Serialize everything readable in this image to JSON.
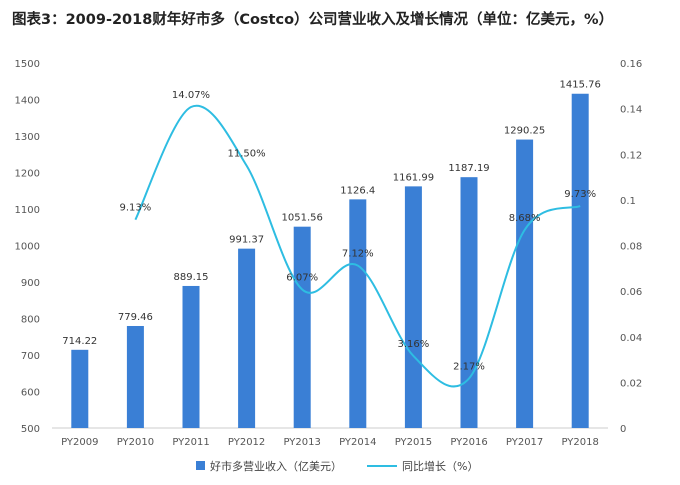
{
  "chart_data": {
    "type": "bar",
    "title": "图表3：2009-2018财年好市多（Costco）公司营业收入及增长情况（单位：亿美元，%）",
    "categories": [
      "PY2009",
      "PY2010",
      "PY2011",
      "PY2012",
      "PY2013",
      "PY2014",
      "PY2015",
      "PY2016",
      "PY2017",
      "PY2018"
    ],
    "series": [
      {
        "name": "好市多营业收入（亿美元）",
        "type": "bar",
        "axis": "left",
        "color": "#3a7fd5",
        "values": [
          714.22,
          779.46,
          889.15,
          991.37,
          1051.56,
          1126.4,
          1161.99,
          1187.19,
          1290.25,
          1415.76
        ],
        "labels": [
          "714.22",
          "779.46",
          "889.15",
          "991.37",
          "1051.56",
          "1126.4",
          "1161.99",
          "1187.19",
          "1290.25",
          "1415.76"
        ]
      },
      {
        "name": "同比增长（%）",
        "type": "line",
        "axis": "right",
        "color": "#2ebde2",
        "values": [
          null,
          0.0913,
          0.1407,
          0.115,
          0.0607,
          0.0712,
          0.0316,
          0.0217,
          0.0868,
          0.0973
        ],
        "labels": [
          "",
          "9.13%",
          "14.07%",
          "11.50%",
          "6.07%",
          "7.12%",
          "3.16%",
          "2.17%",
          "8.68%",
          "9.73%"
        ]
      }
    ],
    "y_left": {
      "min": 500,
      "max": 1500,
      "step": 100,
      "ticks": [
        "500",
        "600",
        "700",
        "800",
        "900",
        "1000",
        "1100",
        "1200",
        "1300",
        "1400",
        "1500"
      ]
    },
    "y_right": {
      "min": 0,
      "max": 0.16,
      "step": 0.02,
      "ticks": [
        "0",
        "0.02",
        "0.04",
        "0.06",
        "0.08",
        "0.1",
        "0.12",
        "0.14",
        "0.16"
      ]
    },
    "grid": false,
    "legend": "bottom"
  }
}
